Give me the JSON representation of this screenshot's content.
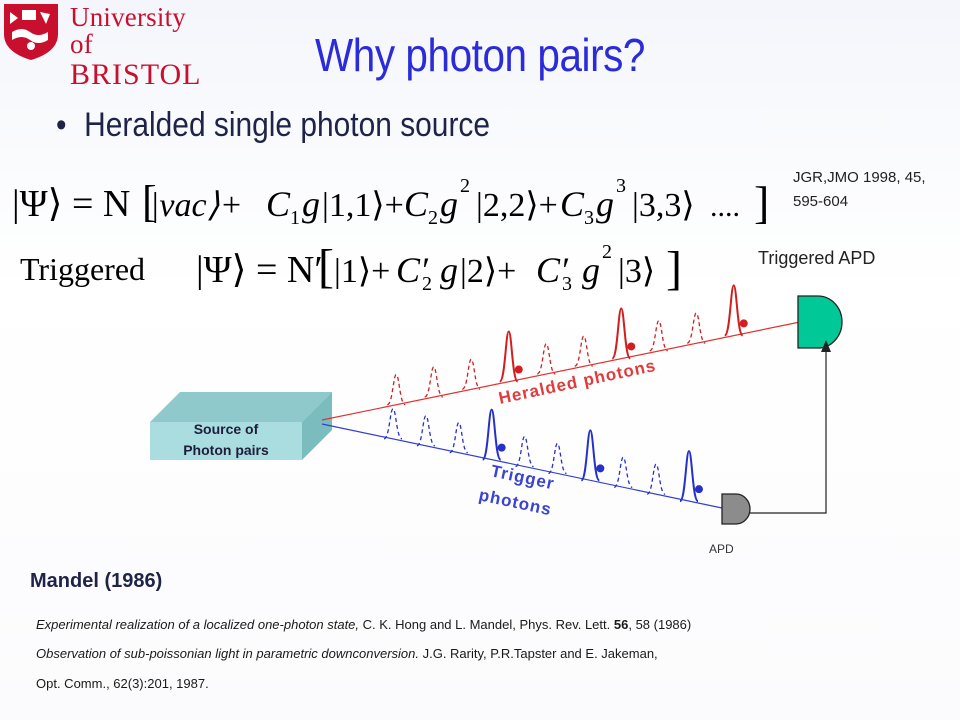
{
  "header": {
    "logo_line1": "University of",
    "logo_line2": "BRISTOL",
    "title": "Why photon pairs?"
  },
  "bullet": "Heralded single photon source",
  "reference": {
    "line1": "JGR,JMO 1998, 45,",
    "line2": "595-604"
  },
  "equation": {
    "triggered_label": "Triggered",
    "line1": {
      "psi": "|Ψ⟩ = N",
      "t0": "vac",
      "c1": "C",
      "s1": "1",
      "g1": "g",
      "k1": "1,1",
      "c2": "C",
      "s2": "2",
      "g2": "g",
      "p2": "2",
      "k2": "2,2",
      "c3": "C",
      "s3": "3",
      "g3": "g",
      "p3": "3",
      "k3": "3,3",
      "tail": "...."
    },
    "line2": {
      "psi": "|Ψ⟩ = N′",
      "k1": "1",
      "c2": "C",
      "s2": "2",
      "g2": "g",
      "k2": "2",
      "c3": "C",
      "s3": "3",
      "g3": "g",
      "p3": "2",
      "k3": "3"
    }
  },
  "diagram": {
    "triggered_apd_label": "Triggered APD",
    "source_label_line1": "Source of",
    "source_label_line2": "Photon pairs",
    "heralded_label": "Heralded photons",
    "trigger_label_line1": "Trigger",
    "trigger_label_line2": "photons",
    "apd_label": "APD",
    "colors": {
      "heralded": "#d21e1e",
      "trigger": "#2531c9",
      "triggered_apd": "#00c896",
      "apd": "#8c8c8c",
      "source": "#a9dde0"
    }
  },
  "mandel": "Mandel (1986)",
  "citations": {
    "c1_italic": "Experimental realization of a localized one-photon state,",
    "c1_rest": " C. K. Hong and L. Mandel, Phys. Rev. Lett. ",
    "c1_bold": "56",
    "c1_end": ", 58 (1986)",
    "c2_italic": "Observation of sub-poissonian light in parametric downconversion.",
    "c2_rest": " J.G. Rarity, P.R.Tapster and E. Jakeman,",
    "c3": "Opt. Comm., 62(3):201, 1987."
  }
}
